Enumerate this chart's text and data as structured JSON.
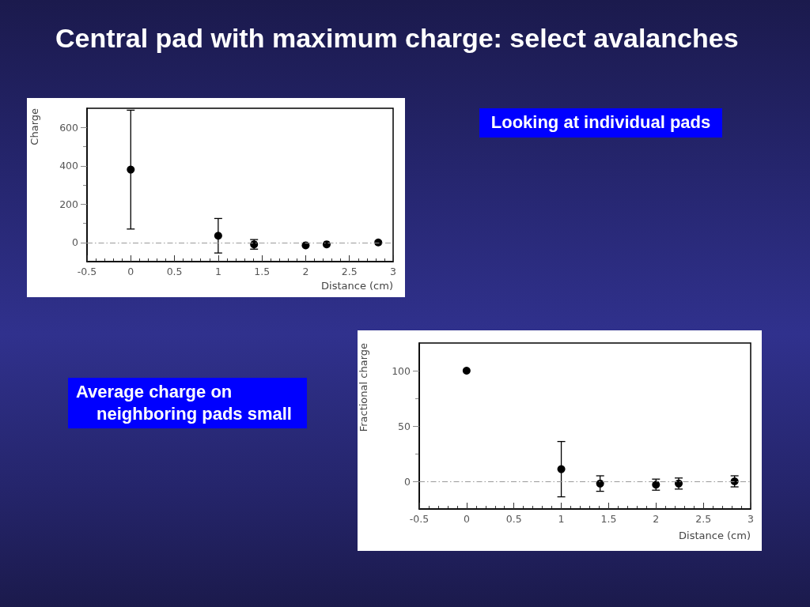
{
  "chart_data": [
    {
      "type": "scatter",
      "title": "Central pad with maximum charge: select avalanches",
      "xlabel": "Distance (cm)",
      "ylabel": "Charge",
      "annotations": [
        "Looking at individual pads"
      ],
      "x": [
        0,
        1,
        1.41,
        2,
        2.24,
        2.83
      ],
      "series": [
        {
          "color": "#000000",
          "values": [
            380,
            35,
            -10,
            -15,
            -10,
            0
          ],
          "errors": [
            310,
            90,
            25,
            null,
            null,
            null
          ]
        }
      ],
      "xlim": [
        -0.5,
        3
      ],
      "xticks": [
        -0.5,
        {
          "value": -0.4,
          "label": null
        },
        {
          "value": -0.3,
          "label": null
        },
        {
          "value": -0.2,
          "label": null
        },
        {
          "value": -0.1,
          "label": null
        },
        0,
        {
          "value": 0.1,
          "label": null
        },
        {
          "value": 0.2,
          "label": null
        },
        {
          "value": 0.3,
          "label": null
        },
        {
          "value": 0.4,
          "label": null
        },
        0.5,
        {
          "value": 0.6,
          "label": null
        },
        {
          "value": 0.7,
          "label": null
        },
        {
          "value": 0.8,
          "label": null
        },
        {
          "value": 0.9,
          "label": null
        },
        1,
        {
          "value": 1.1,
          "label": null
        },
        {
          "value": 1.2,
          "label": null
        },
        {
          "value": 1.3,
          "label": null
        },
        {
          "value": 1.4,
          "label": null
        },
        1.5,
        {
          "value": 1.6,
          "label": null
        },
        {
          "value": 1.7,
          "label": null
        },
        {
          "value": 1.8,
          "label": null
        },
        {
          "value": 1.9,
          "label": null
        },
        2,
        {
          "value": 2.1,
          "label": null
        },
        {
          "value": 2.2,
          "label": null
        },
        {
          "value": 2.3,
          "label": null
        },
        {
          "value": 2.4,
          "label": null
        },
        2.5,
        {
          "value": 2.6,
          "label": null
        },
        {
          "value": 2.7,
          "label": null
        },
        {
          "value": 2.8,
          "label": null
        },
        {
          "value": 2.9,
          "label": null
        },
        3
      ],
      "ylim": [
        -100,
        700
      ],
      "yticks": [
        0,
        {
          "value": 100,
          "label": null
        },
        200,
        {
          "value": 300,
          "label": null
        },
        400,
        {
          "value": 500,
          "label": null
        },
        600
      ],
      "ref_lines": [
        {
          "axis": "y",
          "value": 0,
          "color": "#9a9a9a",
          "line_style": "dashed"
        }
      ],
      "marker": "circle"
    },
    {
      "type": "scatter",
      "xlabel": "Distance (cm)",
      "ylabel": "Fractional charge",
      "annotations": [
        "Average charge on neighboring pads small"
      ],
      "x": [
        0,
        1,
        1.41,
        2,
        2.24,
        2.83
      ],
      "series": [
        {
          "color": "#000000",
          "values": [
            100,
            11,
            -2,
            -3,
            -2,
            0
          ],
          "errors": [
            null,
            25,
            7,
            5,
            5,
            5
          ]
        }
      ],
      "xlim": [
        -0.5,
        3
      ],
      "xticks": [
        -0.5,
        {
          "value": -0.4,
          "label": null
        },
        {
          "value": -0.3,
          "label": null
        },
        {
          "value": -0.2,
          "label": null
        },
        {
          "value": -0.1,
          "label": null
        },
        0,
        {
          "value": 0.1,
          "label": null
        },
        {
          "value": 0.2,
          "label": null
        },
        {
          "value": 0.3,
          "label": null
        },
        {
          "value": 0.4,
          "label": null
        },
        0.5,
        {
          "value": 0.6,
          "label": null
        },
        {
          "value": 0.7,
          "label": null
        },
        {
          "value": 0.8,
          "label": null
        },
        {
          "value": 0.9,
          "label": null
        },
        1,
        {
          "value": 1.1,
          "label": null
        },
        {
          "value": 1.2,
          "label": null
        },
        {
          "value": 1.3,
          "label": null
        },
        {
          "value": 1.4,
          "label": null
        },
        1.5,
        {
          "value": 1.6,
          "label": null
        },
        {
          "value": 1.7,
          "label": null
        },
        {
          "value": 1.8,
          "label": null
        },
        {
          "value": 1.9,
          "label": null
        },
        2,
        {
          "value": 2.1,
          "label": null
        },
        {
          "value": 2.2,
          "label": null
        },
        {
          "value": 2.3,
          "label": null
        },
        {
          "value": 2.4,
          "label": null
        },
        2.5,
        {
          "value": 2.6,
          "label": null
        },
        {
          "value": 2.7,
          "label": null
        },
        {
          "value": 2.8,
          "label": null
        },
        {
          "value": 2.9,
          "label": null
        },
        3
      ],
      "ylim": [
        -25,
        125
      ],
      "yticks": [
        0,
        {
          "value": 25,
          "label": null
        },
        50,
        {
          "value": 75,
          "label": null
        },
        100
      ],
      "ref_lines": [
        {
          "axis": "y",
          "value": 0,
          "color": "#9a9a9a",
          "line_style": "dashed"
        }
      ],
      "marker": "circle"
    }
  ]
}
